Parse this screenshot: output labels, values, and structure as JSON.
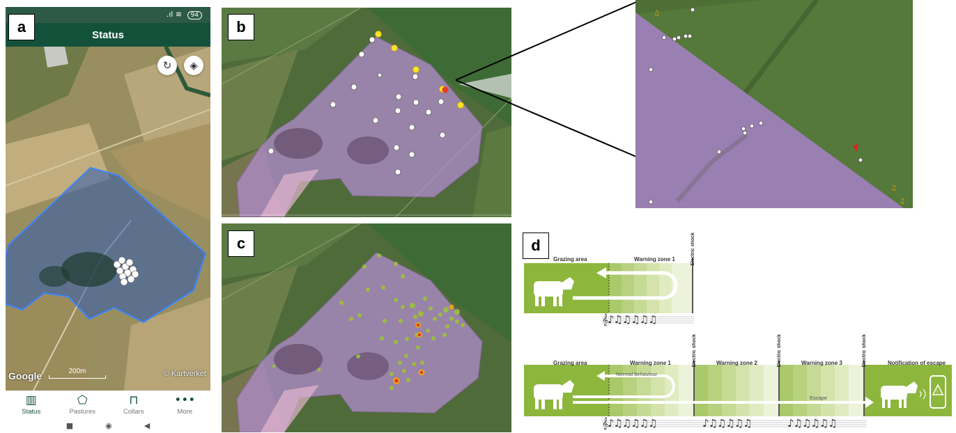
{
  "panel_labels": {
    "a": "a",
    "b": "b",
    "c": "c",
    "d": "d"
  },
  "phone": {
    "battery": "94",
    "title": "Status",
    "refresh_icon": "refresh-icon",
    "layers_icon": "layers-icon",
    "google_mark": "Google",
    "scale_label": "200m",
    "credit": "© Kartverket",
    "nav": [
      {
        "label": "Status",
        "icon": "map-icon",
        "glyph": "▥"
      },
      {
        "label": "Pastures",
        "icon": "pasture-pentagon-icon",
        "glyph": "⬠"
      },
      {
        "label": "Collars",
        "icon": "collar-icon",
        "glyph": "⊓"
      },
      {
        "label": "More",
        "icon": "more-dots-icon",
        "glyph": "•••"
      }
    ],
    "android_nav": [
      "■",
      "◉",
      "◀"
    ]
  },
  "diagram": {
    "top": {
      "grazing_area": "Grazing area",
      "warning_zone_1": "Warning zone 1",
      "electric_shock": "Electric shock"
    },
    "bottom": {
      "grazing_area": "Grazing area",
      "warning_zone_1": "Warning zone 1",
      "warning_zone_2": "Warning zone 2",
      "warning_zone_3": "Warning zone 3",
      "electric_shock": "Electric shock",
      "notification": "Notification of escape",
      "normal_behaviour": "Normal behaviour",
      "escape": "Escape"
    },
    "notes": "♪♫♫♫♫♫",
    "clef": "𝄞"
  },
  "colors": {
    "app_green": "#14513a",
    "diagram_green": "#8db63c",
    "pasture_fill": "#b48ed2",
    "phone_polygon": "#2f6fd8"
  }
}
